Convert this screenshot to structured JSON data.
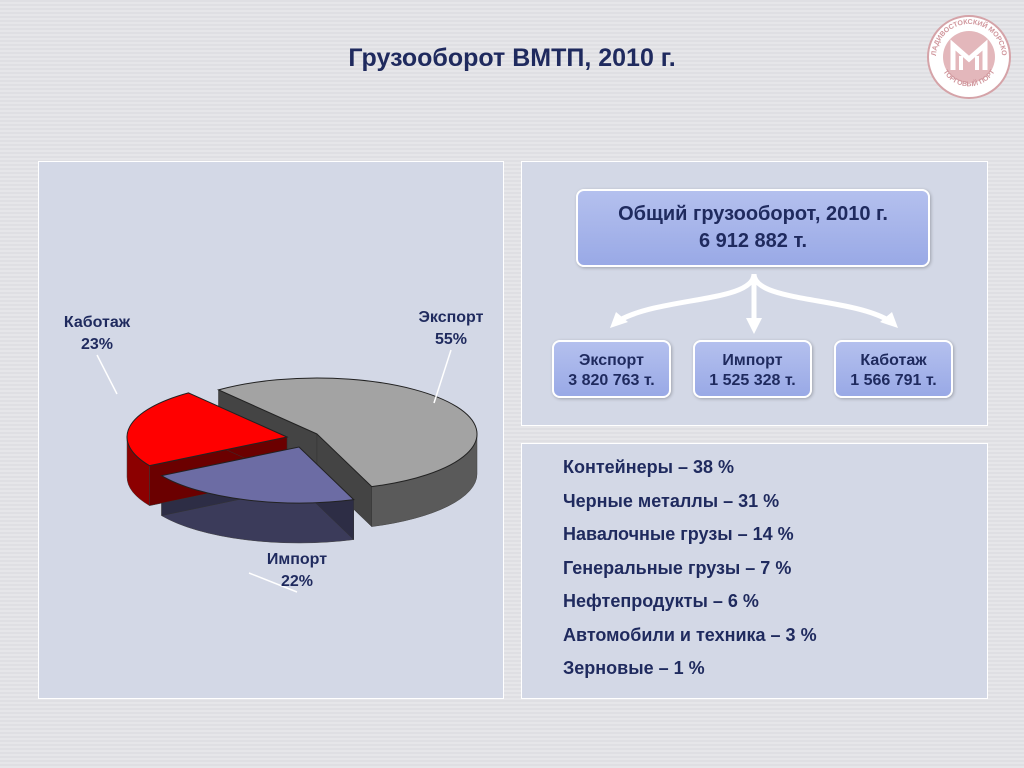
{
  "title": "Грузооборот ВМТП, 2010 г.",
  "logo": {
    "text_top": "ВЛАДИВОСТОКСКИЙ МОРСКОЙ",
    "text_bottom": "ТОРГОВЫЙ ПОРТ"
  },
  "chart_data": {
    "type": "pie",
    "style": "3d-exploded",
    "slices": [
      {
        "label": "Экспорт",
        "percent": "55%",
        "value": 55,
        "color": "#a3a3a3"
      },
      {
        "label": "Импорт",
        "percent": "22%",
        "value": 22,
        "color": "#6c6ca4"
      },
      {
        "label": "Каботаж",
        "percent": "23%",
        "value": 23,
        "color": "#ff0000"
      }
    ]
  },
  "total": {
    "line1": "Общий грузооборот, 2010 г.",
    "line2": "6 912 882 т."
  },
  "breakdown": [
    {
      "label": "Экспорт",
      "value": "3 820 763 т."
    },
    {
      "label": "Импорт",
      "value": "1 525 328 т."
    },
    {
      "label": "Каботаж",
      "value": "1 566 791 т."
    }
  ],
  "cargo": [
    "Контейнеры – 38 %",
    "Черные металлы – 31 %",
    "Навалочные грузы – 14 %",
    "Генеральные грузы – 7 %",
    "Нефтепродукты – 6 %",
    "Автомобили и техника – 3 %",
    "Зерновые – 1 %"
  ],
  "colors": {
    "title": "#1f2a5e",
    "panel": "#d3d8e6",
    "box": "#a9b7ec"
  }
}
